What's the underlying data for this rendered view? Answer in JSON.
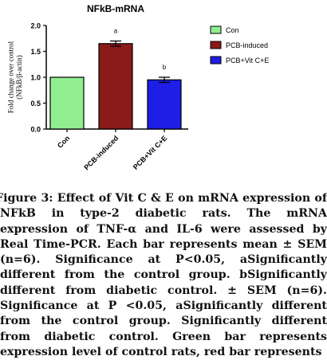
{
  "chart_data": {
    "type": "bar",
    "title": "NFkB-mRNA",
    "ylabel": "Fold change over control (NFkB/β-actin)",
    "xlabel": "",
    "categories": [
      "Con",
      "PCB-induced",
      "PCB+Vit C+E"
    ],
    "values": [
      1.0,
      1.65,
      0.95
    ],
    "errors": [
      0.0,
      0.05,
      0.05
    ],
    "sig_labels": [
      "",
      "a",
      "b"
    ],
    "colors": [
      "#90EE90",
      "#8B1A1A",
      "#1E1EE6"
    ],
    "legend": [
      "Con",
      "PCB-induced",
      "PCB+Vit C+E"
    ],
    "legend_position": "top-right",
    "ylim": [
      0,
      2.0
    ],
    "yticks": [
      "0.0",
      "0.5",
      "1.0",
      "1.5",
      "2.0"
    ],
    "grid": false
  },
  "caption": {
    "text": "Figure 3: Effect of Vit C & E on mRNA expression of NFkB in type-2 diabetic rats. The mRNA expression of TNF-α and IL-6 were assessed by Real Time-PCR. Each bar represents mean ± SEM (n=6). Significance at P<0.05, aSignificantly different from the control group. bSignificantly different from diabetic control. ± SEM (n=6). Significance at P <0.05, aSignificantly different from the control group. Significantly different from diabetic control. Green bar represents expression level of control rats, red bar represents"
  }
}
